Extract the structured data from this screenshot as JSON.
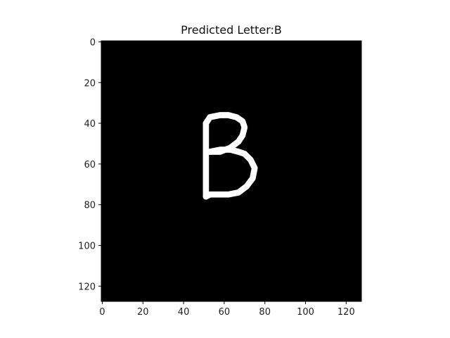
{
  "chart_data": {
    "type": "image",
    "title_prefix": "Predicted Letter:",
    "predicted_letter": "B",
    "image_size": [
      128,
      128
    ],
    "xlim": [
      -0.5,
      127.5
    ],
    "ylim": [
      127.5,
      -0.5
    ],
    "x_ticks": [
      0,
      20,
      40,
      60,
      80,
      100,
      120
    ],
    "y_ticks": [
      0,
      20,
      40,
      60,
      80,
      100,
      120
    ],
    "x_tick_labels": [
      "0",
      "20",
      "40",
      "60",
      "80",
      "100",
      "120"
    ],
    "y_tick_labels": [
      "0",
      "20",
      "40",
      "60",
      "80",
      "100",
      "120"
    ],
    "background_color": "#000000",
    "stroke_color": "#ffffff",
    "strokes": [
      {
        "name": "stem",
        "points": [
          [
            51,
            40
          ],
          [
            51,
            76
          ]
        ]
      },
      {
        "name": "upper-bowl",
        "points": [
          [
            51,
            40
          ],
          [
            53,
            37
          ],
          [
            58,
            36
          ],
          [
            62,
            36
          ],
          [
            66,
            37
          ],
          [
            69,
            39
          ],
          [
            70,
            42
          ],
          [
            69,
            46
          ],
          [
            67,
            49
          ],
          [
            63,
            52
          ],
          [
            58,
            54
          ],
          [
            53,
            54
          ]
        ]
      },
      {
        "name": "middle-bar",
        "points": [
          [
            53,
            54
          ],
          [
            58,
            53
          ],
          [
            63,
            53
          ],
          [
            67,
            54
          ],
          [
            70,
            55
          ]
        ]
      },
      {
        "name": "lower-bowl",
        "points": [
          [
            70,
            55
          ],
          [
            73,
            58
          ],
          [
            75,
            62
          ],
          [
            74,
            67
          ],
          [
            71,
            71
          ],
          [
            67,
            74
          ],
          [
            62,
            75
          ],
          [
            57,
            75
          ],
          [
            53,
            75
          ],
          [
            51,
            76
          ]
        ]
      }
    ],
    "stroke_width_px": 3
  }
}
